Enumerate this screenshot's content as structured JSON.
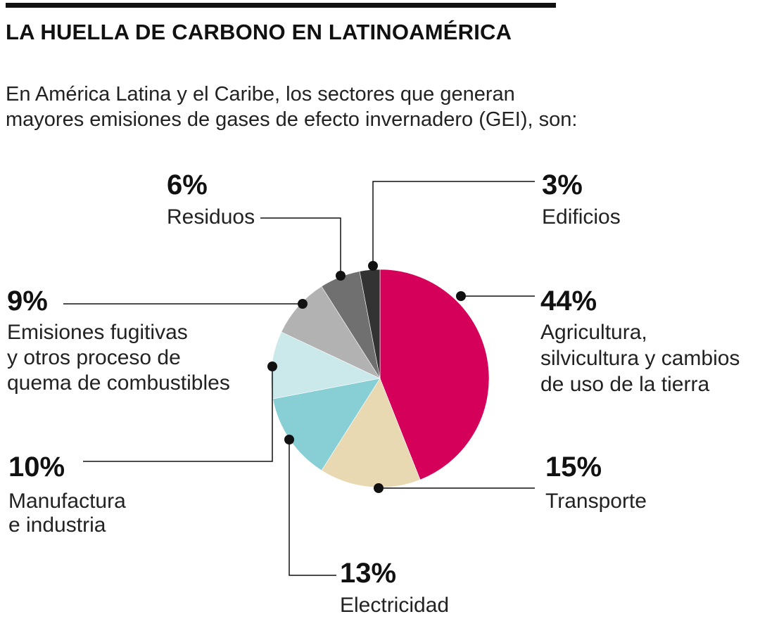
{
  "title": "LA HUELLA DE CARBONO EN LATINOAMÉRICA",
  "subtitle_lines": [
    "En América Latina y el Caribe, los sectores que generan",
    "mayores emisiones de gases de efecto invernadero (GEI), son:"
  ],
  "chart_data": {
    "type": "pie",
    "slices": [
      {
        "pct_label": "44%",
        "value": 44,
        "label_lines": [
          "Agricultura,",
          "silvicultura y cambios",
          "de uso de la tierra"
        ],
        "color": "#d4005a"
      },
      {
        "pct_label": "15%",
        "value": 15,
        "label_lines": [
          "Transporte"
        ],
        "color": "#e9d9b3"
      },
      {
        "pct_label": "13%",
        "value": 13,
        "label_lines": [
          "Electricidad"
        ],
        "color": "#87ced5"
      },
      {
        "pct_label": "10%",
        "value": 10,
        "label_lines": [
          "Manufactura",
          "e industria"
        ],
        "color": "#cbe8ea"
      },
      {
        "pct_label": "9%",
        "value": 9,
        "label_lines": [
          "Emisiones fugitivas",
          "y otros proceso de",
          "quema de combustibles"
        ],
        "color": "#b3b2b2"
      },
      {
        "pct_label": "6%",
        "value": 6,
        "label_lines": [
          "Residuos"
        ],
        "color": "#707070"
      },
      {
        "pct_label": "3%",
        "value": 3,
        "label_lines": [
          "Edificios"
        ],
        "color": "#333333"
      }
    ]
  }
}
